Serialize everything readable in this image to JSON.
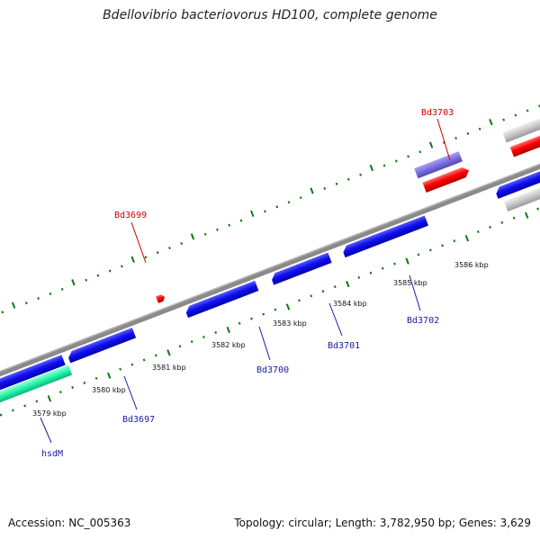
{
  "title": "Bdellovibrio bacteriovorus HD100, complete genome",
  "footer": {
    "accession": "Accession: NC_005363",
    "topology": "Topology: circular; Length: 3,782,950 bp; Genes: 3,629"
  },
  "scale_labels": [
    "3579 kbp",
    "3580 kbp",
    "3581 kbp",
    "3582 kbp",
    "3583 kbp",
    "3584 kbp",
    "3585 kbp",
    "3586 kbp"
  ],
  "gene_labels": [
    {
      "name": "hsdM",
      "color": "blue"
    },
    {
      "name": "Bd3697",
      "color": "blue"
    },
    {
      "name": "Bd3699",
      "color": "red"
    },
    {
      "name": "Bd3700",
      "color": "blue"
    },
    {
      "name": "Bd3701",
      "color": "blue"
    },
    {
      "name": "Bd3702",
      "color": "blue"
    },
    {
      "name": "Bd3703",
      "color": "red"
    }
  ],
  "colors": {
    "backbone": "#8a8a8a",
    "gene_blue": "#1010ee",
    "gene_red": "#ff0000",
    "gene_purple": "#7a6fe0",
    "gene_gray": "#c8c8c8",
    "gene_teal": "#22f5a8",
    "ticks": "#117711"
  }
}
